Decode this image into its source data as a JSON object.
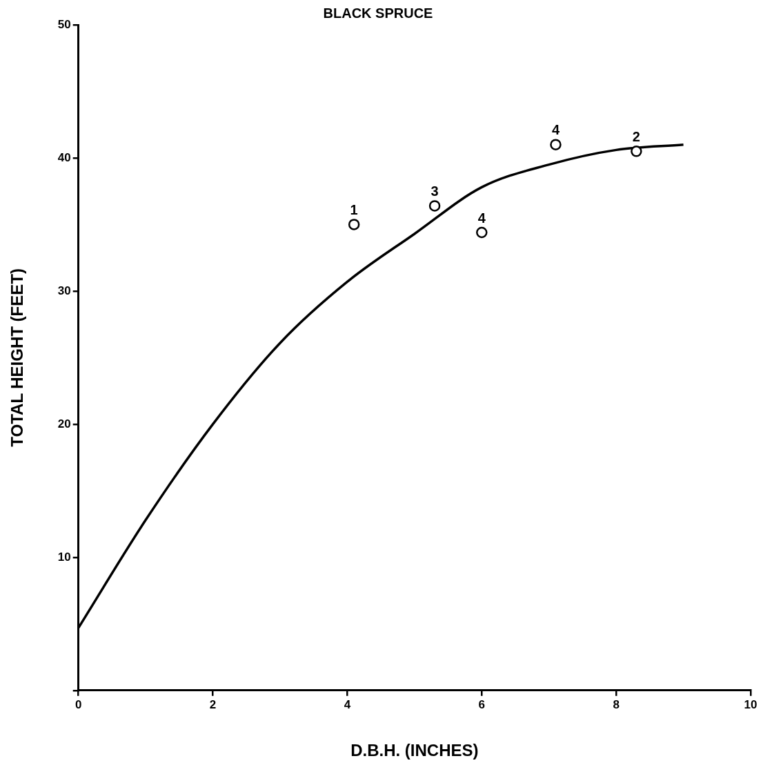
{
  "chart_data": {
    "type": "scatter",
    "title": "BLACK SPRUCE",
    "xlabel": "D.B.H. (INCHES)",
    "ylabel": "TOTAL HEIGHT (FEET)",
    "xlim": [
      0,
      10
    ],
    "xticks": [
      0,
      2,
      4,
      6,
      8,
      10
    ],
    "ylim": [
      0,
      50
    ],
    "yticks": [
      {
        "value": 0,
        "label": null
      },
      10,
      20,
      30,
      40,
      50
    ],
    "grid": false,
    "legend": false,
    "annotations": [
      {
        "text": "1",
        "x": 4.1,
        "y": 35.0
      },
      {
        "text": "3",
        "x": 5.3,
        "y": 36.4
      },
      {
        "text": "4",
        "x": 6.0,
        "y": 34.4
      },
      {
        "text": "4",
        "x": 7.1,
        "y": 41.0
      },
      {
        "text": "2",
        "x": 8.3,
        "y": 40.5
      }
    ],
    "series": [
      {
        "color": "#000000",
        "marker": "circle",
        "x": [
          4.1,
          5.3,
          6.0,
          7.1,
          8.3
        ],
        "values": [
          35.0,
          36.4,
          34.4,
          41.0,
          40.5
        ]
      },
      {
        "type": "line",
        "color": "#000000",
        "marker": "none",
        "x": [
          0,
          1,
          2,
          3,
          4,
          5,
          6,
          7,
          8,
          9
        ],
        "values": [
          4.7,
          12.8,
          20.0,
          26.1,
          30.7,
          34.3,
          37.8,
          39.5,
          40.6,
          41.0
        ]
      }
    ]
  }
}
